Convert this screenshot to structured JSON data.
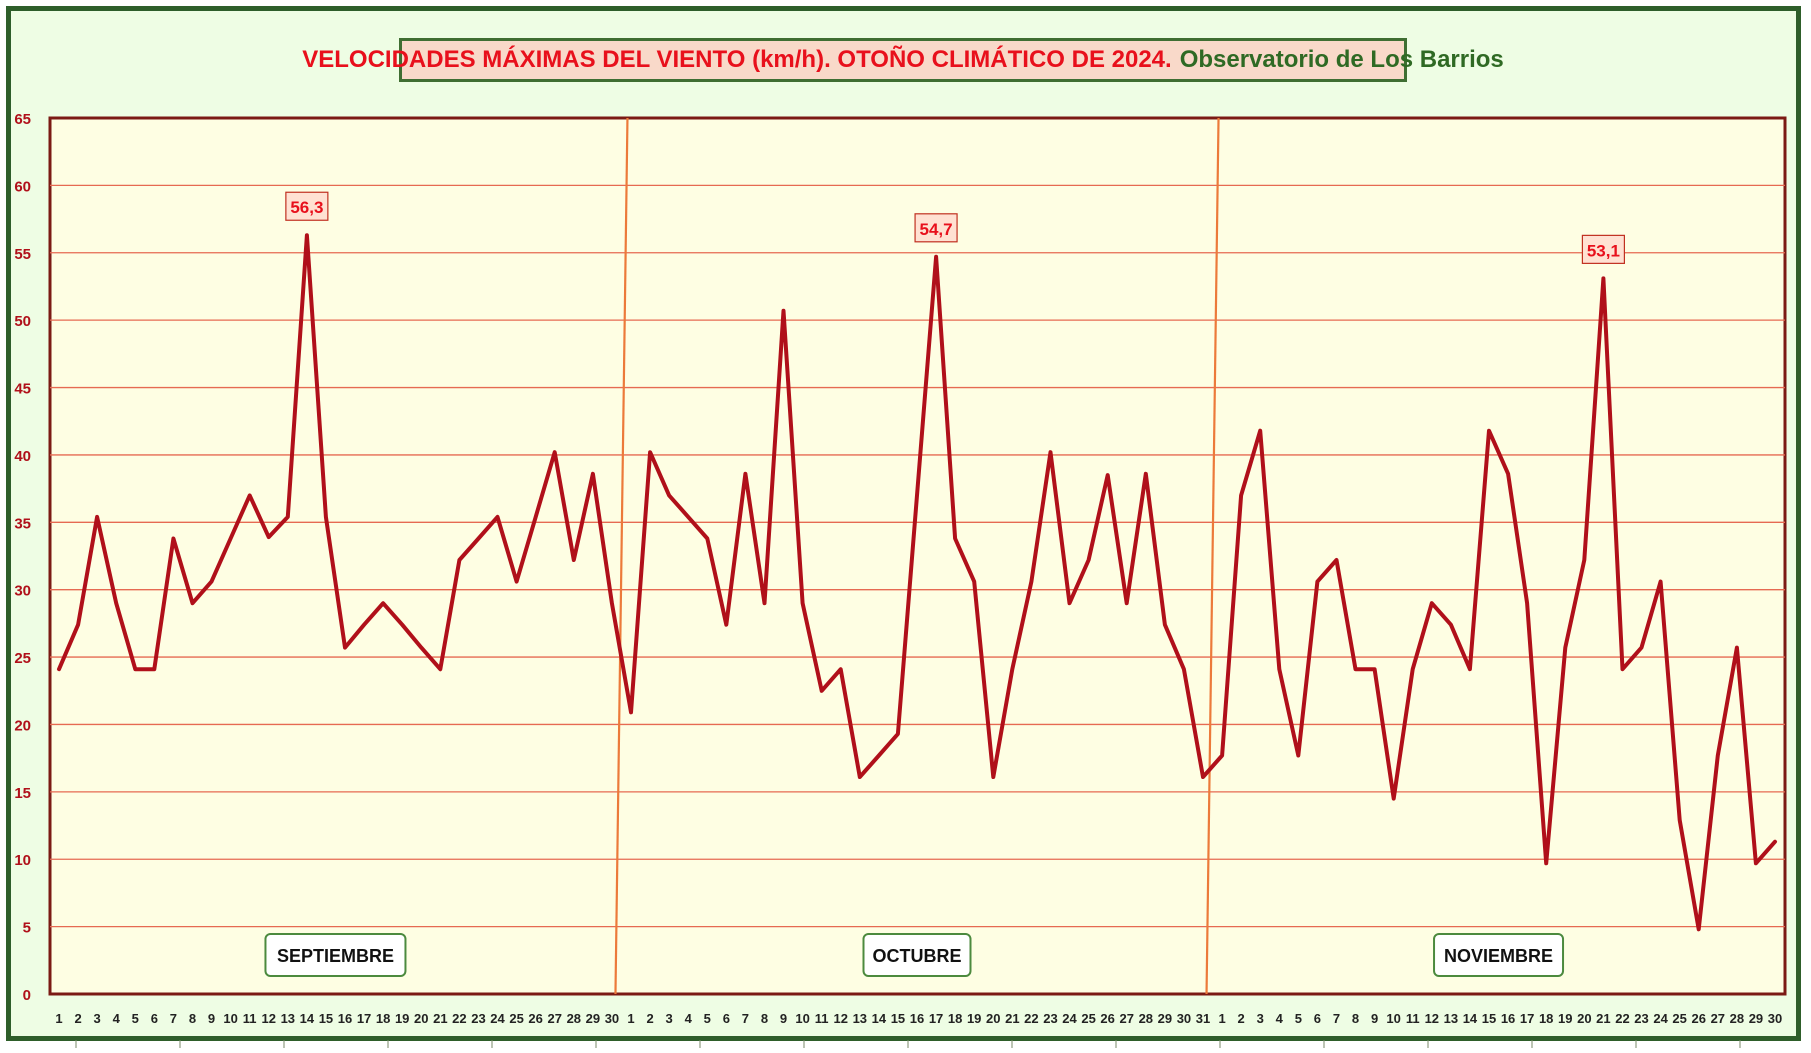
{
  "chart_data": {
    "type": "line",
    "title": "VELOCIDADES MÁXIMAS DEL VIENTO (km/h). OTOÑO CLIMÁTICO DE 2024.",
    "subtitle": "Observatorio de Los Barrios",
    "xlabel": "",
    "ylabel": "",
    "ylim": [
      0,
      65
    ],
    "yticks": [
      "0",
      "5",
      "10",
      "15",
      "20",
      "25",
      "30",
      "35",
      "40",
      "45",
      "50",
      "55",
      "60",
      "65"
    ],
    "grid": true,
    "x": [
      "1",
      "2",
      "3",
      "4",
      "5",
      "6",
      "7",
      "8",
      "9",
      "10",
      "11",
      "12",
      "13",
      "14",
      "15",
      "16",
      "17",
      "18",
      "19",
      "20",
      "21",
      "22",
      "23",
      "24",
      "25",
      "26",
      "27",
      "28",
      "29",
      "30",
      "1",
      "2",
      "3",
      "4",
      "5",
      "6",
      "7",
      "8",
      "9",
      "10",
      "11",
      "12",
      "13",
      "14",
      "15",
      "16",
      "17",
      "18",
      "19",
      "20",
      "21",
      "22",
      "23",
      "24",
      "25",
      "26",
      "27",
      "28",
      "29",
      "30",
      "31",
      "1",
      "2",
      "3",
      "4",
      "5",
      "6",
      "7",
      "8",
      "9",
      "10",
      "11",
      "12",
      "13",
      "14",
      "15",
      "16",
      "17",
      "18",
      "19",
      "20",
      "21",
      "22",
      "23",
      "24",
      "25",
      "26",
      "27",
      "28",
      "29",
      "30"
    ],
    "series": [
      {
        "values": [
          24.1,
          27.4,
          35.4,
          29.0,
          24.1,
          24.1,
          33.8,
          29.0,
          30.6,
          33.8,
          37.0,
          33.9,
          35.4,
          56.3,
          35.4,
          25.7,
          27.4,
          29.0,
          27.4,
          25.7,
          24.1,
          32.2,
          33.8,
          35.4,
          30.6,
          35.4,
          40.2,
          32.2,
          38.6,
          29.0,
          20.9,
          40.2,
          37.0,
          35.4,
          33.8,
          27.4,
          38.6,
          29.0,
          50.7,
          29.0,
          22.5,
          24.1,
          16.1,
          17.7,
          19.3,
          37.0,
          54.7,
          33.8,
          30.6,
          16.1,
          24.1,
          30.6,
          40.2,
          29.0,
          32.2,
          38.5,
          29.0,
          38.6,
          27.4,
          24.1,
          16.1,
          17.7,
          37.0,
          41.8,
          24.1,
          17.7,
          30.6,
          32.2,
          24.1,
          24.1,
          14.5,
          24.1,
          29.0,
          27.4,
          24.1,
          41.8,
          38.6,
          29.0,
          9.7,
          25.7,
          32.2,
          53.1,
          24.1,
          25.7,
          30.6,
          12.9,
          4.8,
          17.7,
          25.7,
          9.7,
          11.3
        ]
      }
    ],
    "annotations": [
      {
        "index": 13,
        "label": "56,3"
      },
      {
        "index": 46,
        "label": "54,7"
      },
      {
        "index": 81,
        "label": "53,1"
      }
    ],
    "months": [
      "SEPTIEMBRE",
      "OCTUBRE",
      "NOVIEMBRE"
    ],
    "month_boundaries": [
      30,
      61
    ]
  },
  "colors": {
    "frame_border": "#2e5e2a",
    "outer_background": "#eefde4",
    "plot_background": "#fefee3",
    "plot_border": "#7b1a14",
    "grid": "#e66a52",
    "line": "#b0101a",
    "divider": "#ec7a3a",
    "axis_text": "#b0101a",
    "title_red": "#e8101c",
    "title_green": "#2f6a24",
    "title_box": "#f9d9c9",
    "label_box": "#ffe1d2"
  }
}
